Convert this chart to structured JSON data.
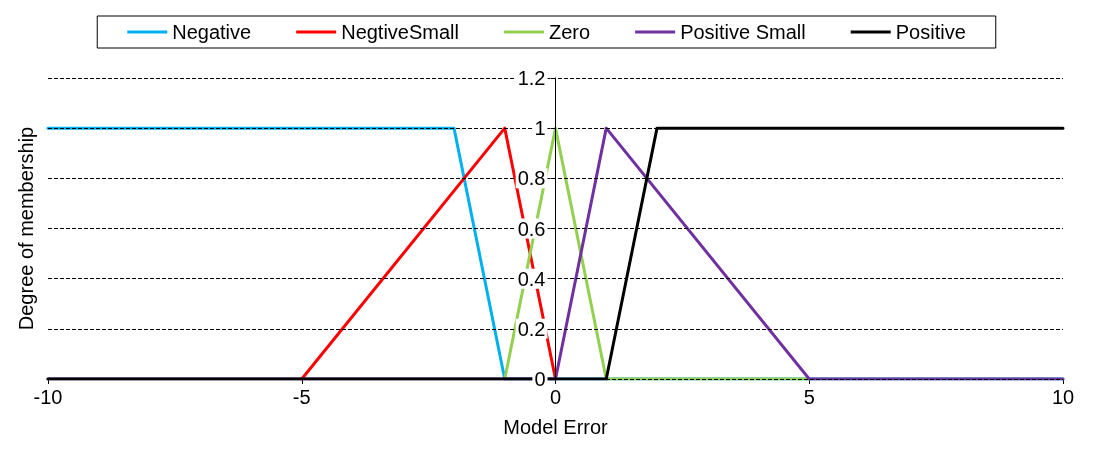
{
  "chart_data": {
    "type": "line",
    "xlabel": "Model Error",
    "ylabel": "Degree of membership",
    "xlim": [
      -10,
      10
    ],
    "xticks": [
      -10,
      -5,
      0,
      5,
      10
    ],
    "ylim": [
      0,
      1.2
    ],
    "yticks": [
      0,
      0.2,
      0.4,
      0.6,
      0.8,
      1,
      1.2
    ],
    "grid": "y",
    "legend": "top",
    "marker": "none",
    "line_style": "solid",
    "series": [
      {
        "name": "Negative",
        "color": "#00b0f0",
        "x": [
          -10,
          -2,
          -1,
          10
        ],
        "values": [
          1,
          1,
          0,
          0
        ]
      },
      {
        "name": "NegtiveSmall",
        "color": "#ff0000",
        "x": [
          -5,
          -1,
          0
        ],
        "values": [
          0,
          1,
          0
        ]
      },
      {
        "name": "Zero",
        "color": "#92d050",
        "x": [
          -1,
          0,
          1,
          5
        ],
        "values": [
          0,
          1,
          0,
          0
        ]
      },
      {
        "name": "Positive Small",
        "color": "#7030a0",
        "x": [
          -10,
          0,
          1,
          5,
          10
        ],
        "values": [
          0,
          0,
          1,
          0,
          0
        ]
      },
      {
        "name": "Positive",
        "color": "#000000",
        "x": [
          -10,
          1,
          2,
          10
        ],
        "values": [
          0,
          0,
          1,
          1
        ]
      }
    ]
  }
}
